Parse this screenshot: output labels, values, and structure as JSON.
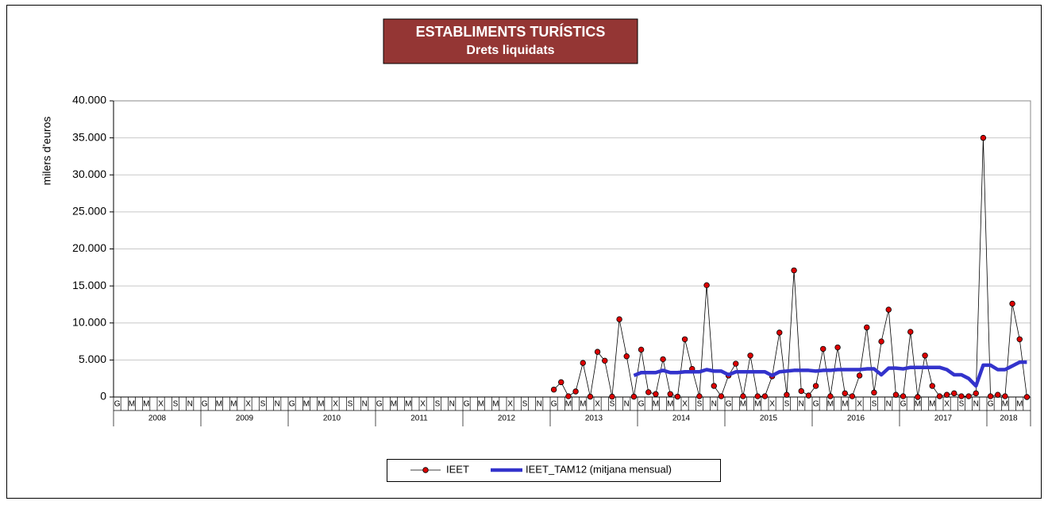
{
  "chart_data": {
    "type": "line",
    "title": "ESTABLIMENTS TURÍSTICS",
    "subtitle": "Drets liquidats",
    "y_label": "milers d'euros",
    "categories": [
      "G",
      null,
      "M",
      null,
      "M",
      null,
      "X",
      null,
      "S",
      null,
      "N",
      null,
      "G",
      null,
      "M",
      null,
      "M",
      null,
      "X",
      null,
      "S",
      null,
      "N",
      null,
      "G",
      null,
      "M",
      null,
      "M",
      null,
      "X",
      null,
      "S",
      null,
      "N",
      null,
      "G",
      null,
      "M",
      null,
      "M",
      null,
      "X",
      null,
      "S",
      null,
      "N",
      null,
      "G",
      null,
      "M",
      null,
      "M",
      null,
      "X",
      null,
      "S",
      null,
      "N",
      null,
      "G",
      null,
      "M",
      null,
      "M",
      null,
      "X",
      null,
      "S",
      null,
      "N",
      null,
      "G",
      null,
      "M",
      null,
      "M",
      null,
      "X",
      null,
      "S",
      null,
      "N",
      null,
      "G",
      null,
      "M",
      null,
      "M",
      null,
      "X",
      null,
      "S",
      null,
      "N",
      null,
      "G",
      null,
      "M",
      null,
      "M",
      null,
      "X",
      null,
      "S",
      null,
      "N",
      null,
      "G",
      null,
      "M",
      null,
      "M",
      null,
      "X",
      null,
      "S",
      null,
      "N",
      null,
      "G",
      null,
      "M",
      null,
      "M",
      null
    ],
    "year_groups": [
      "2008",
      "2009",
      "2010",
      "2011",
      "2012",
      "2013",
      "2014",
      "2015",
      "2016",
      "2017",
      "2018"
    ],
    "ylim": [
      0,
      40000
    ],
    "yticks": [
      0,
      {
        "value": 5000,
        "label": "5.000"
      },
      {
        "value": 10000,
        "label": "10.000"
      },
      {
        "value": 15000,
        "label": "15.000"
      },
      {
        "value": 20000,
        "label": "20.000"
      },
      {
        "value": 25000,
        "label": "25.000"
      },
      {
        "value": 30000,
        "label": "30.000"
      },
      {
        "value": 35000,
        "label": "35.000"
      },
      {
        "value": 40000,
        "label": "40.000"
      }
    ],
    "grid": true,
    "legend": "bottom",
    "series": [
      {
        "name": "IEET",
        "color": "#000000",
        "marker_color": "#dd0000",
        "values": [
          null,
          null,
          null,
          null,
          null,
          null,
          null,
          null,
          null,
          null,
          null,
          null,
          null,
          null,
          null,
          null,
          null,
          null,
          null,
          null,
          null,
          null,
          null,
          null,
          null,
          null,
          null,
          null,
          null,
          null,
          null,
          null,
          null,
          null,
          null,
          null,
          null,
          null,
          null,
          null,
          null,
          null,
          null,
          null,
          null,
          null,
          null,
          null,
          null,
          null,
          null,
          null,
          null,
          null,
          null,
          null,
          null,
          null,
          null,
          null,
          1000,
          2000,
          100,
          750,
          4600,
          50,
          6100,
          4900,
          50,
          10500,
          5500,
          50,
          6400,
          650,
          400,
          5100,
          400,
          50,
          7800,
          3800,
          100,
          15100,
          1500,
          100,
          2900,
          4500,
          100,
          5600,
          100,
          100,
          2800,
          8700,
          300,
          17100,
          800,
          200,
          1500,
          6500,
          100,
          6700,
          500,
          100,
          2900,
          9400,
          600,
          7500,
          11800,
          300,
          100,
          8800,
          0,
          5600,
          1500,
          100,
          300,
          500,
          100,
          100,
          500,
          35000,
          100,
          300,
          100,
          12600,
          7800,
          0
        ]
      },
      {
        "name": "IEET_TAM12 (mitjana mensual)",
        "color": "#3333cc",
        "values": [
          null,
          null,
          null,
          null,
          null,
          null,
          null,
          null,
          null,
          null,
          null,
          null,
          null,
          null,
          null,
          null,
          null,
          null,
          null,
          null,
          null,
          null,
          null,
          null,
          null,
          null,
          null,
          null,
          null,
          null,
          null,
          null,
          null,
          null,
          null,
          null,
          null,
          null,
          null,
          null,
          null,
          null,
          null,
          null,
          null,
          null,
          null,
          null,
          null,
          null,
          null,
          null,
          null,
          null,
          null,
          null,
          null,
          null,
          null,
          null,
          null,
          null,
          null,
          null,
          null,
          null,
          null,
          null,
          null,
          null,
          null,
          2900,
          3300,
          3300,
          3300,
          3600,
          3300,
          3300,
          3400,
          3400,
          3400,
          3700,
          3500,
          3500,
          3000,
          3400,
          3400,
          3400,
          3400,
          3400,
          2900,
          3400,
          3500,
          3600,
          3600,
          3600,
          3500,
          3600,
          3600,
          3700,
          3700,
          3700,
          3700,
          3800,
          3800,
          3000,
          3900,
          3900,
          3800,
          4000,
          4000,
          4000,
          4000,
          4000,
          3700,
          3000,
          3000,
          2500,
          1500,
          4300,
          4300,
          3700,
          3700,
          4200,
          4700,
          4700
        ]
      }
    ]
  }
}
